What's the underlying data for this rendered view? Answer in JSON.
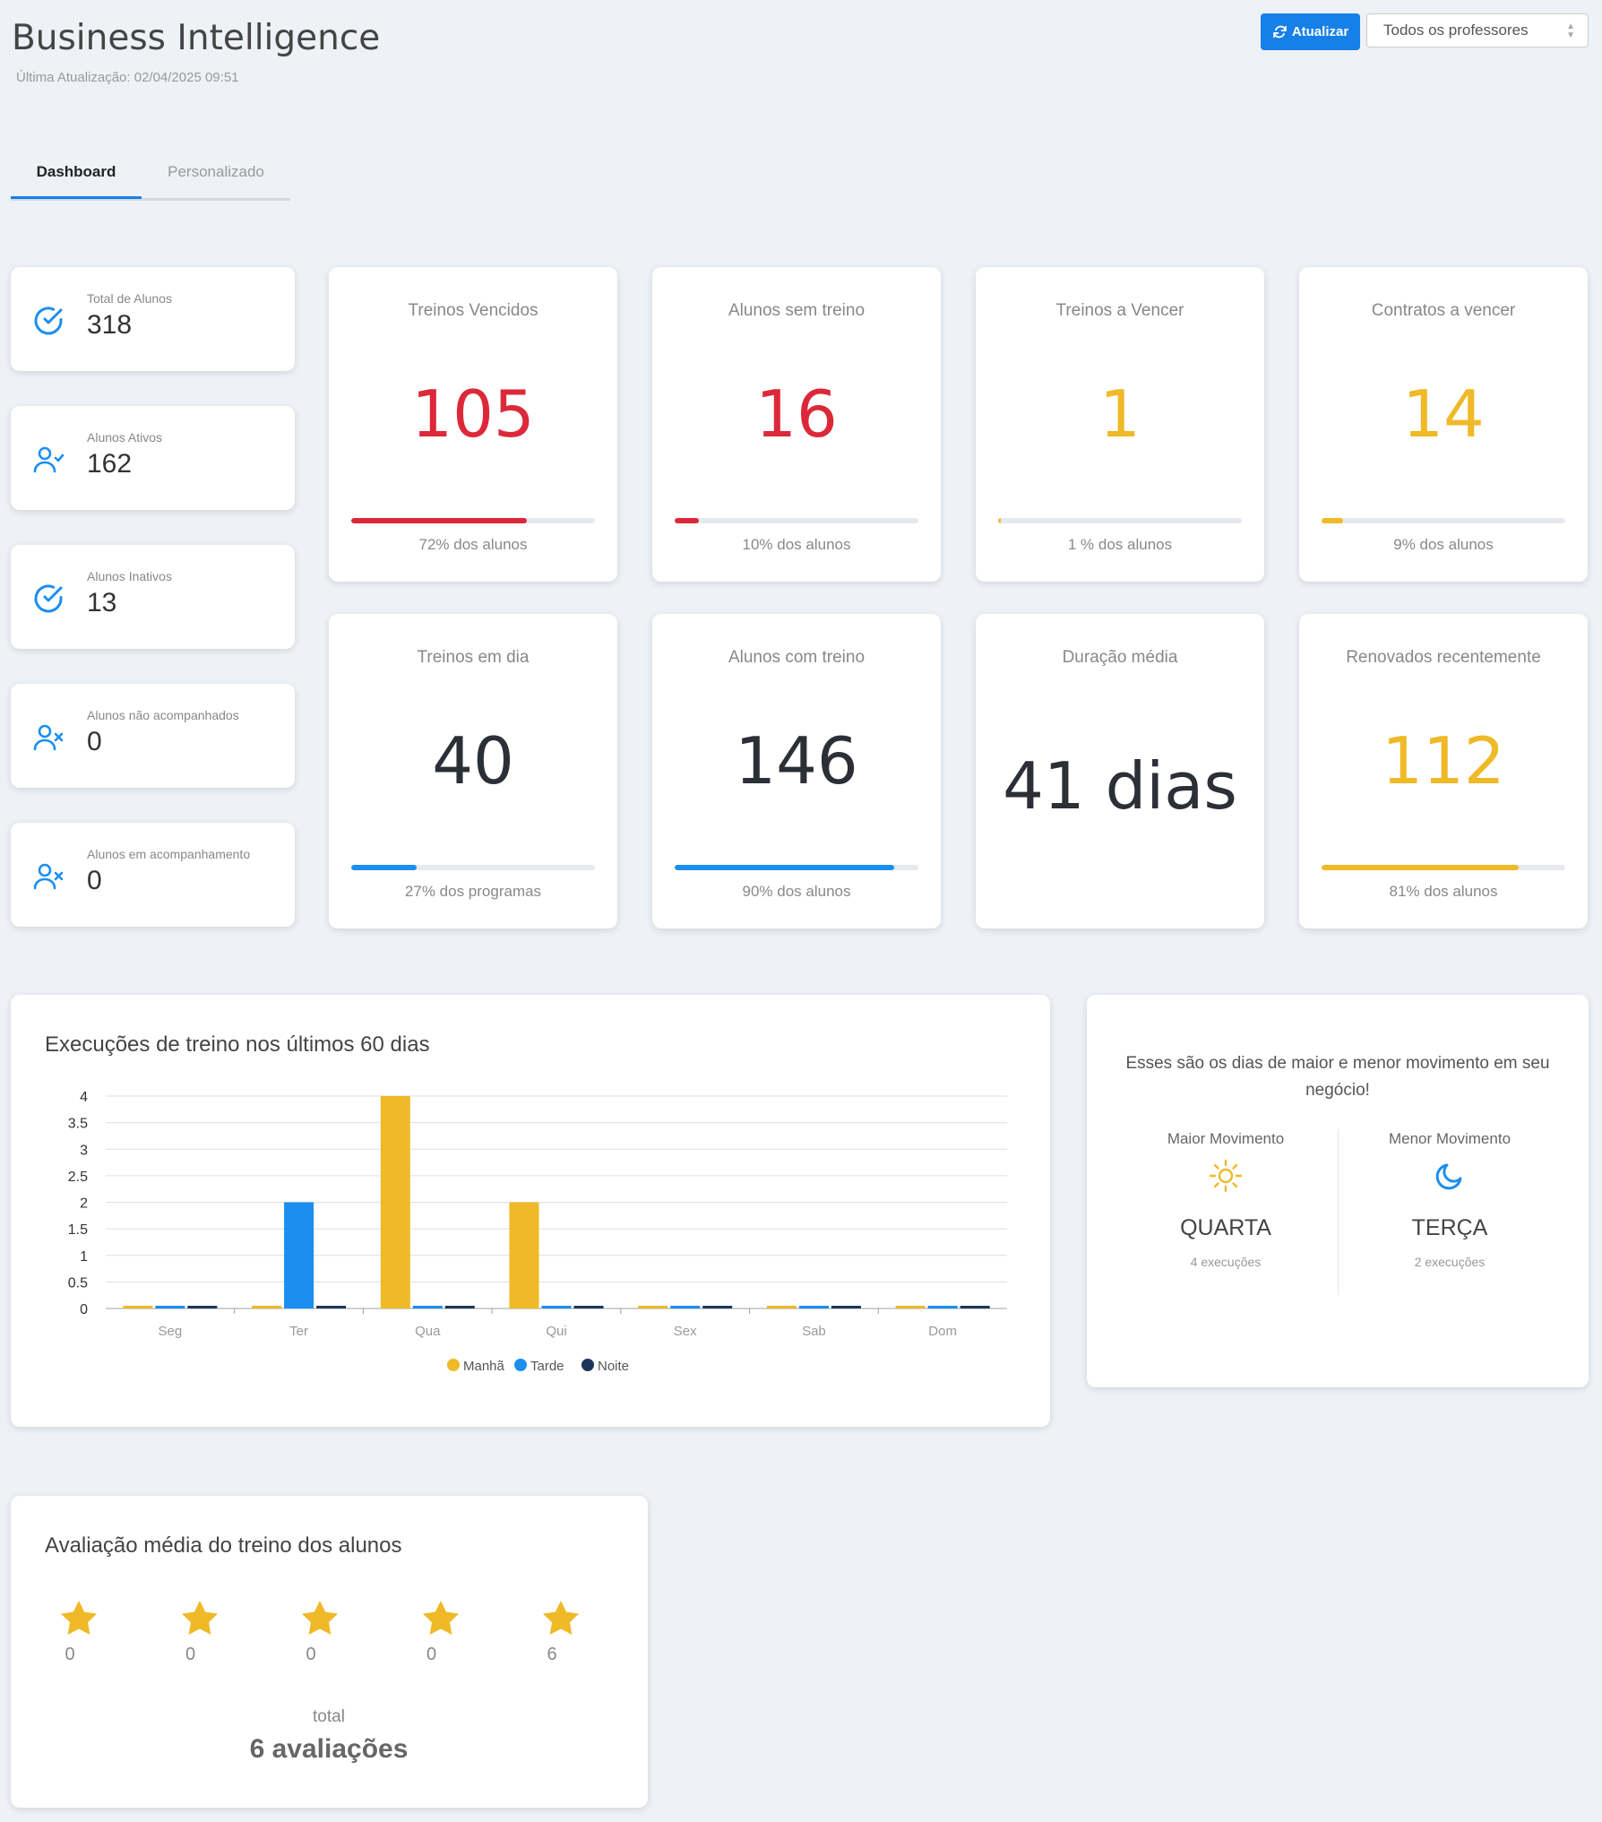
{
  "header": {
    "title": "Business Intelligence",
    "last_update": "Última Atualização: 02/04/2025 09:51",
    "refresh_label": "Atualizar",
    "teacher_select": "Todos os professores"
  },
  "tabs": [
    {
      "label": "Dashboard",
      "active": true
    },
    {
      "label": "Personalizado",
      "active": false
    }
  ],
  "summary": [
    {
      "label": "Total de Alunos",
      "value": "318",
      "icon": "check-circle-icon"
    },
    {
      "label": "Alunos Ativos",
      "value": "162",
      "icon": "user-check-icon"
    },
    {
      "label": "Alunos Inativos",
      "value": "13",
      "icon": "check-circle-icon"
    },
    {
      "label": "Alunos não acompanhados",
      "value": "0",
      "icon": "user-x-icon"
    },
    {
      "label": "Alunos em acompanhamento",
      "value": "0",
      "icon": "user-x-icon"
    }
  ],
  "stats": [
    {
      "title": "Treinos Vencidos",
      "value": "105",
      "pct_label": "72% dos alunos",
      "fill": 0.72,
      "color": "#dc2939"
    },
    {
      "title": "Alunos sem treino",
      "value": "16",
      "pct_label": "10% dos alunos",
      "fill": 0.1,
      "color": "#dc2939"
    },
    {
      "title": "Treinos a Vencer",
      "value": "1",
      "pct_label": "1 % dos alunos",
      "fill": 0.01,
      "color": "#efb927"
    },
    {
      "title": "Contratos a vencer",
      "value": "14",
      "pct_label": "9% dos alunos",
      "fill": 0.09,
      "color": "#efb927"
    },
    {
      "title": "Treinos em dia",
      "value": "40",
      "pct_label": "27% dos programas",
      "fill": 0.27,
      "color": "#1b8ef0"
    },
    {
      "title": "Alunos com treino",
      "value": "146",
      "pct_label": "90% dos alunos",
      "fill": 0.9,
      "color": "#1b8ef0"
    },
    {
      "title": "Duração média",
      "value": "41 dias",
      "pct_label": "",
      "fill": null,
      "color": ""
    },
    {
      "title": "Renovados recentemente",
      "value": "112",
      "pct_label": "81% dos alunos",
      "fill": 0.81,
      "color": "#efb927"
    }
  ],
  "chart": {
    "title": "Execuções de treino nos últimos 60 dias"
  },
  "chart_data": {
    "type": "bar",
    "title": "Execuções de treino nos últimos 60 dias",
    "categories": [
      "Seg",
      "Ter",
      "Qua",
      "Qui",
      "Sex",
      "Sab",
      "Dom"
    ],
    "series": [
      {
        "name": "Manhã",
        "color": "#efb927",
        "values": [
          0,
          0,
          4,
          2,
          0,
          0,
          0
        ]
      },
      {
        "name": "Tarde",
        "color": "#1b8ef0",
        "values": [
          0,
          2,
          0,
          0,
          0,
          0,
          0
        ]
      },
      {
        "name": "Noite",
        "color": "#1d3557",
        "values": [
          0,
          0,
          0,
          0,
          0,
          0,
          0
        ]
      }
    ],
    "y_ticks": [
      "0",
      "0.5",
      "1",
      "1.5",
      "2",
      "2.5",
      "3",
      "3.5",
      "4"
    ],
    "ylim": [
      0,
      4
    ],
    "grid": true,
    "legend": "bottom-center"
  },
  "movement": {
    "intro": "Esses são os dias de maior e menor movimento em seu negócio!",
    "max_label": "Maior Movimento",
    "max_day": "QUARTA",
    "max_count": "4 execuções",
    "min_label": "Menor Movimento",
    "min_day": "TERÇA",
    "min_count": "2 execuções"
  },
  "evaluation": {
    "title": "Avaliação média do treino dos alunos",
    "stars": [
      "0",
      "0",
      "0",
      "0",
      "6"
    ],
    "total_label": "total",
    "total_value": "6 avaliações"
  }
}
